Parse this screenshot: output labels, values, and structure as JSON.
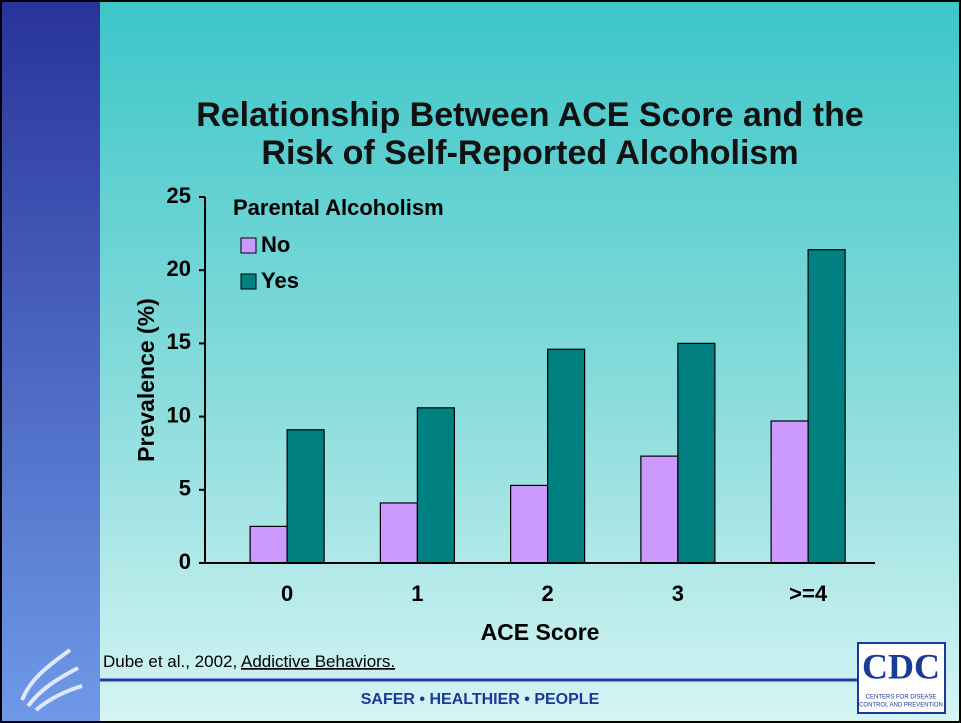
{
  "chart_data": {
    "type": "bar",
    "title": [
      "Relationship Between ACE Score and the",
      "Risk of Self-Reported Alcoholism"
    ],
    "xlabel": "ACE Score",
    "ylabel": "Prevalence (%)",
    "legend_title": "Parental Alcoholism",
    "legend": "upper left",
    "categories": [
      "0",
      "1",
      "2",
      "3",
      ">=4"
    ],
    "series": [
      {
        "name": "No",
        "color": "#cc99ff",
        "values": [
          2.5,
          4.1,
          5.3,
          7.3,
          9.7
        ]
      },
      {
        "name": "Yes",
        "color": "#008080",
        "values": [
          9.1,
          10.6,
          14.6,
          15.0,
          21.4
        ]
      }
    ],
    "ylim": [
      0,
      25
    ],
    "yticks": [
      0,
      5,
      10,
      15,
      20,
      25
    ]
  },
  "source": [
    "Dube et al., 2002,",
    "Addictive Behaviors."
  ],
  "footer": "SAFER • HEALTHIER • PEOPLE",
  "logo": {
    "text": "CDC",
    "subtext": [
      "CENTERS FOR DISEASE",
      "CONTROL AND PREVENTION"
    ]
  }
}
